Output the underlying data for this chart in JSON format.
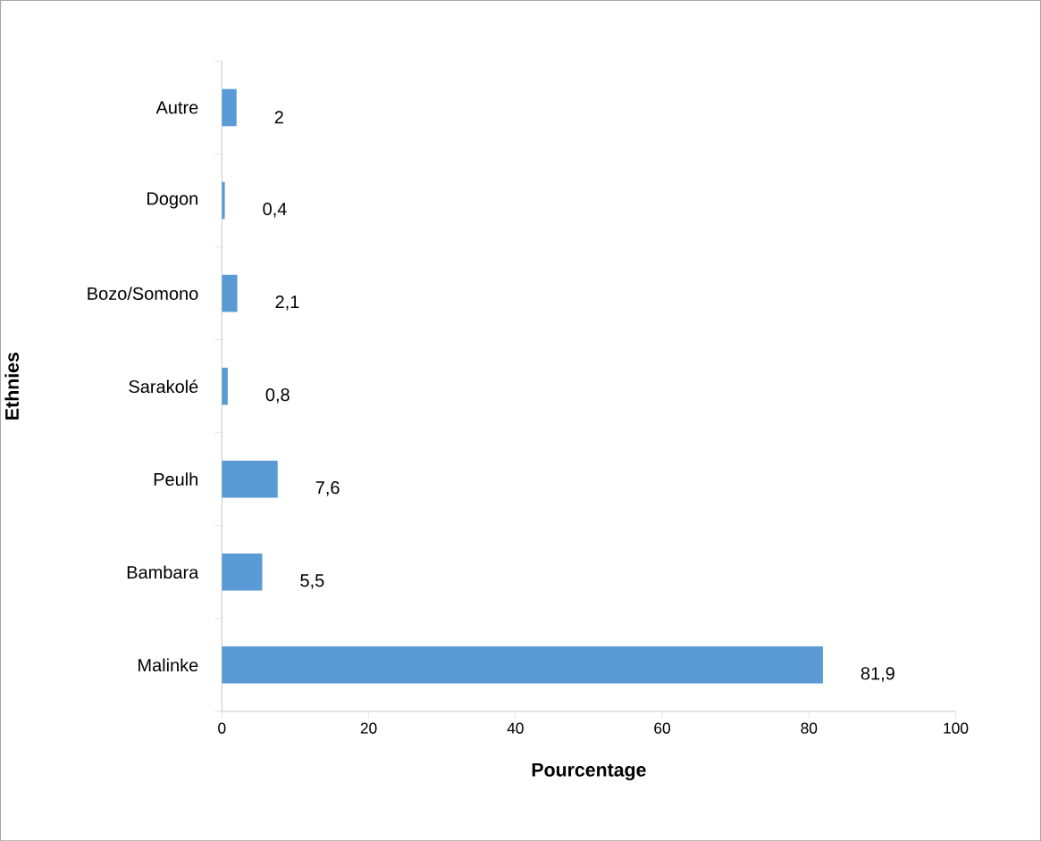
{
  "chart_data": {
    "type": "bar",
    "orientation": "horizontal",
    "xlabel": "Pourcentage",
    "ylabel": "Ethnies",
    "categories": [
      "Autre",
      "Dogon",
      "Bozo/Somono",
      "Sarakolé",
      "Peulh",
      "Bambara",
      "Malinke"
    ],
    "values": [
      2,
      0.4,
      2.1,
      0.8,
      7.6,
      5.5,
      81.9
    ],
    "value_labels": [
      "2",
      "0,4",
      "2,1",
      "0,8",
      "7,6",
      "5,5",
      "81,9"
    ],
    "color": "#5b9bd5",
    "xlim": [
      0,
      100
    ],
    "xticks": [
      0,
      20,
      40,
      60,
      80,
      100
    ],
    "grid": false
  }
}
